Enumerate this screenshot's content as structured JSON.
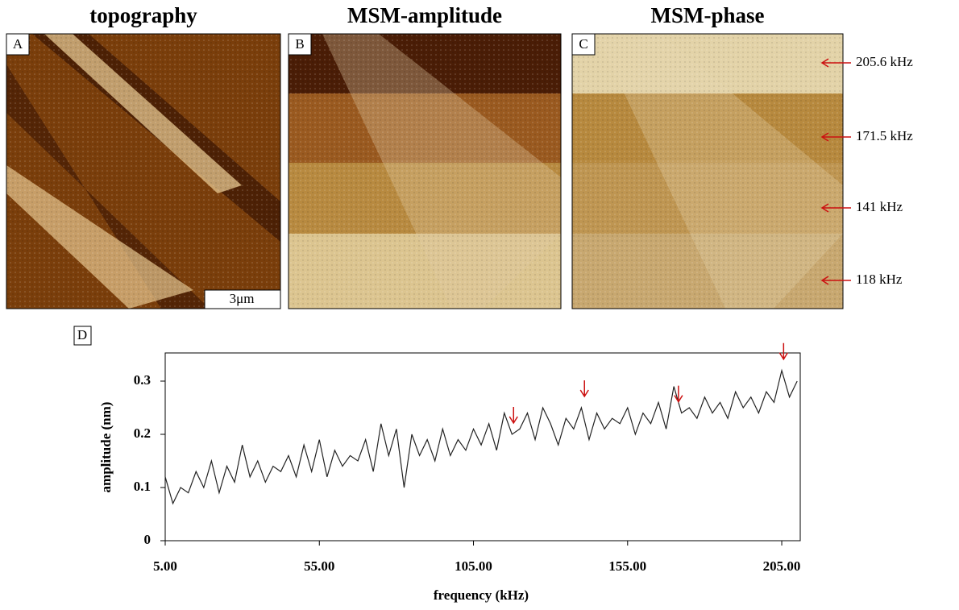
{
  "panels": [
    {
      "title": "topography",
      "label": "A",
      "scale_bar": "3μm"
    },
    {
      "title": "MSM-amplitude",
      "label": "B"
    },
    {
      "title": "MSM-phase",
      "label": "C"
    }
  ],
  "chart_data": {
    "type": "line",
    "label": "D",
    "x_label": "frequency (kHz)",
    "y_label": "amplitude (nm)",
    "x": [
      5,
      7.5,
      10,
      12.5,
      15,
      17.5,
      20,
      22.5,
      25,
      27.5,
      30,
      32.5,
      35,
      37.5,
      40,
      42.5,
      45,
      47.5,
      50,
      52.5,
      55,
      57.5,
      60,
      62.5,
      65,
      67.5,
      70,
      72.5,
      75,
      77.5,
      80,
      82.5,
      85,
      87.5,
      90,
      92.5,
      95,
      97.5,
      100,
      102.5,
      105,
      107.5,
      110,
      112.5,
      115,
      117.5,
      120,
      122.5,
      125,
      127.5,
      130,
      132.5,
      135,
      137.5,
      140,
      142.5,
      145,
      147.5,
      150,
      152.5,
      155,
      157.5,
      160,
      162.5,
      165,
      167.5,
      170,
      172.5,
      175,
      177.5,
      180,
      182.5,
      185,
      187.5,
      190,
      192.5,
      195,
      197.5,
      200,
      202.5,
      205,
      207.5,
      210
    ],
    "series": [
      {
        "color": "#222222",
        "values": [
          0.12,
          0.07,
          0.1,
          0.09,
          0.13,
          0.1,
          0.15,
          0.09,
          0.14,
          0.11,
          0.18,
          0.12,
          0.15,
          0.11,
          0.14,
          0.13,
          0.16,
          0.12,
          0.18,
          0.13,
          0.19,
          0.12,
          0.17,
          0.14,
          0.16,
          0.15,
          0.19,
          0.13,
          0.22,
          0.16,
          0.21,
          0.1,
          0.2,
          0.16,
          0.19,
          0.15,
          0.21,
          0.16,
          0.19,
          0.17,
          0.21,
          0.18,
          0.22,
          0.17,
          0.24,
          0.2,
          0.21,
          0.24,
          0.19,
          0.25,
          0.22,
          0.18,
          0.23,
          0.21,
          0.25,
          0.19,
          0.24,
          0.21,
          0.23,
          0.22,
          0.25,
          0.2,
          0.24,
          0.22,
          0.26,
          0.21,
          0.29,
          0.24,
          0.25,
          0.23,
          0.27,
          0.24,
          0.26,
          0.23,
          0.28,
          0.25,
          0.27,
          0.24,
          0.28,
          0.26,
          0.32,
          0.27,
          0.3
        ]
      }
    ],
    "xlim": [
      5,
      211
    ],
    "ylim": [
      0,
      0.353
    ],
    "xticks": [
      {
        "value": 5,
        "label": "5.00"
      },
      {
        "value": 55,
        "label": "55.00"
      },
      {
        "value": 105,
        "label": "105.00"
      },
      {
        "value": 155,
        "label": "155.00"
      },
      {
        "value": 205,
        "label": "205.00"
      }
    ],
    "yticks": [
      0,
      0.1,
      0.2,
      0.3
    ],
    "marker_color": "#cc1111",
    "markers": [
      {
        "value": 205.6,
        "label": "205.6 kHz"
      },
      {
        "value": 171.5,
        "label": "171.5 kHz"
      },
      {
        "value": 141,
        "label": "141 kHz"
      },
      {
        "value": 118,
        "label": "118 kHz"
      }
    ]
  }
}
